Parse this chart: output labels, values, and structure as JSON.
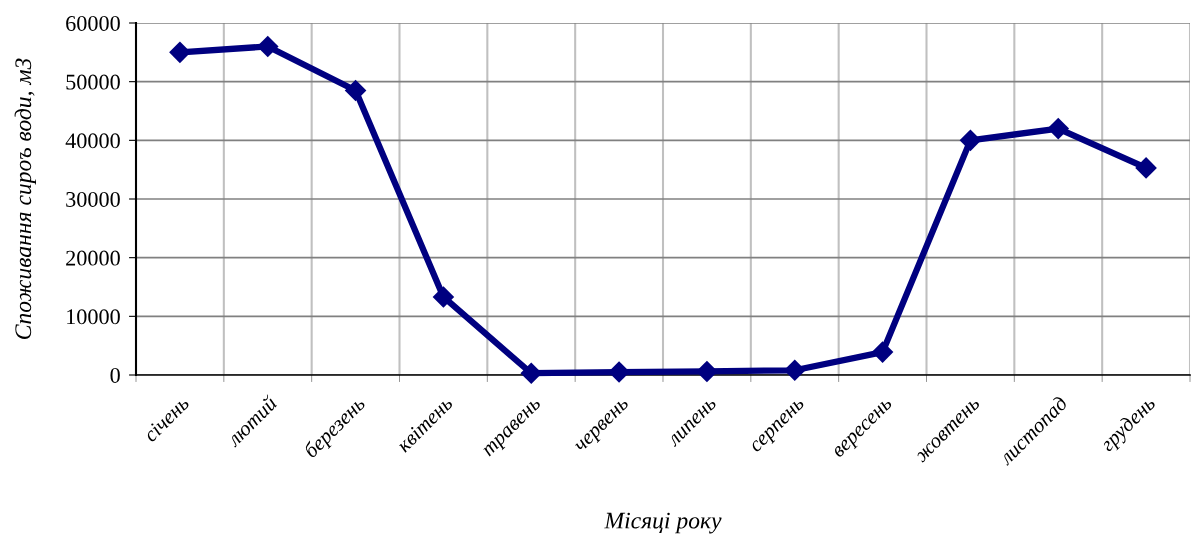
{
  "chart_data": {
    "type": "line",
    "xlabel": "Місяці року",
    "ylabel": "Споживання сироъ води, м3",
    "categories": [
      "січень",
      "лютий",
      "березень",
      "квітень",
      "травень",
      "червень",
      "липень",
      "серпень",
      "вересень",
      "жовтень",
      "листопад",
      "грудень"
    ],
    "series": [
      {
        "color": "#000080",
        "values": [
          55000,
          56000,
          48500,
          13300,
          300,
          500,
          600,
          800,
          3900,
          40000,
          42000,
          35300
        ]
      }
    ],
    "ylim": [
      0,
      60000
    ],
    "yticks": [
      0,
      10000,
      20000,
      30000,
      40000,
      50000,
      60000
    ],
    "grid": true,
    "marker": "diamond",
    "line_style": "solid"
  }
}
